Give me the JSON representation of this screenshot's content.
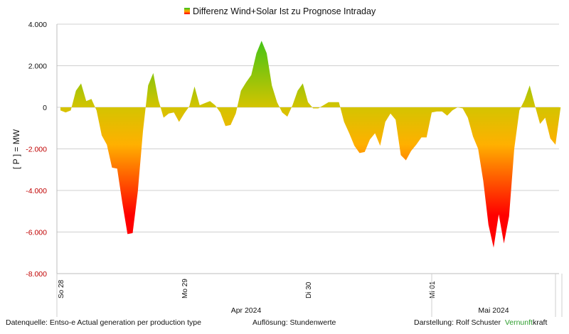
{
  "chart_data": {
    "type": "area",
    "title": "Differenz Wind+Solar Ist zu Prognose Intraday",
    "legend_icon": "gradient-swatch",
    "ylabel": "[ P ] = MW",
    "xlabel": "",
    "ylim": [
      -8000,
      4000
    ],
    "yticks": [
      4000,
      2000,
      0,
      -2000,
      -4000,
      -6000,
      -8000
    ],
    "ytick_labels": [
      "4.000",
      "2.000",
      "0",
      "-2.000",
      "-4.000",
      "-6.000",
      "-8.000"
    ],
    "grid": true,
    "x_unit": "hour",
    "x_day_ticks": [
      {
        "hour": 0,
        "label": "So 28"
      },
      {
        "hour": 24,
        "label": "Mo 29"
      },
      {
        "hour": 48,
        "label": "Di 30"
      },
      {
        "hour": 72,
        "label": "Mi 01"
      }
    ],
    "x_month_labels": [
      {
        "label": "Apr 2024",
        "from_hour": 0,
        "to_hour": 72
      },
      {
        "label": "Mai 2024",
        "from_hour": 72,
        "to_hour": 97
      }
    ],
    "colors": {
      "positive_max": "#22c41c",
      "zero": "#d4c400",
      "mid_negative": "#ffb000",
      "negative_max": "#ff0000",
      "negative_tick": "#c00000",
      "grid": "#d0d0d0"
    },
    "series": [
      {
        "name": "Differenz Wind+Solar Ist zu Prognose Intraday",
        "values": [
          -150,
          -250,
          -150,
          800,
          1150,
          300,
          400,
          -150,
          -1350,
          -1800,
          -2900,
          -2950,
          -4600,
          -6100,
          -6050,
          -4050,
          -1150,
          1050,
          1650,
          350,
          -500,
          -300,
          -250,
          -700,
          -300,
          50,
          1000,
          100,
          200,
          300,
          100,
          -250,
          -900,
          -850,
          -300,
          800,
          1200,
          1550,
          2600,
          3200,
          2600,
          1050,
          250,
          -250,
          -450,
          100,
          800,
          1150,
          250,
          -50,
          -50,
          100,
          250,
          250,
          250,
          -700,
          -1250,
          -1850,
          -2200,
          -2150,
          -1550,
          -1250,
          -1850,
          -700,
          -300,
          -600,
          -2300,
          -2550,
          -2100,
          -1800,
          -1450,
          -1450,
          -250,
          -200,
          -200,
          -400,
          -150,
          0,
          -50,
          -500,
          -1400,
          -2000,
          -3550,
          -5650,
          -6750,
          -5150,
          -6550,
          -5250,
          -2000,
          -150,
          350,
          1050,
          100,
          -800,
          -500,
          -1500,
          -1800,
          0
        ]
      }
    ]
  },
  "footer": {
    "source_label": "Datenquelle:",
    "source_value": "Entso-e Actual generation per production type",
    "resolution_label": "Auflösung:",
    "resolution_value": "Stundenwerte",
    "author_label": "Darstellung: Rolf Schuster",
    "brand_part1": "Vernunft",
    "brand_part2": "kraft"
  }
}
